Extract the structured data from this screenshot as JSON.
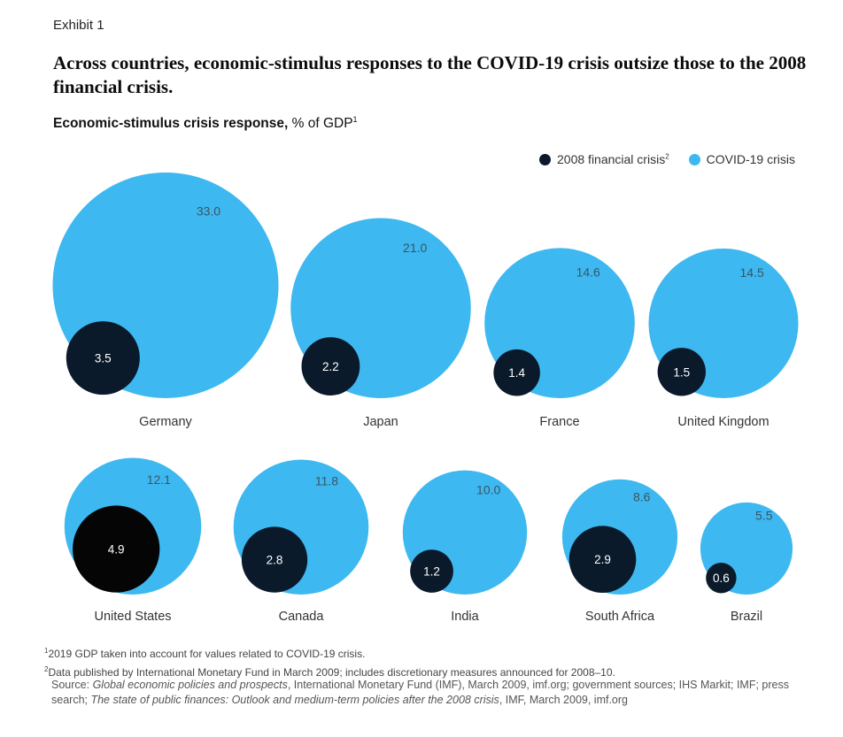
{
  "exhibit_label": "Exhibit 1",
  "title": "Across countries, economic-stimulus responses to the COVID-19 crisis outsize those to the 2008 financial crisis.",
  "subtitle_bold": "Economic-stimulus crisis response,",
  "subtitle_rest": " % of GDP",
  "subtitle_sup": "1",
  "legend": {
    "items": [
      {
        "label": "2008 financial crisis",
        "sup": "2",
        "color": "#0b1a2a"
      },
      {
        "label": "COVID-19 crisis",
        "sup": "",
        "color": "#3db8f0"
      }
    ]
  },
  "colors": {
    "covid": "#3db8f0",
    "financial": "#0b1a2a",
    "us_financial": "#050505",
    "label_on_blue": "#3a5566",
    "label_on_dark": "#ffffff"
  },
  "chart_data": {
    "type": "bubble",
    "unit": "% of GDP",
    "series": [
      {
        "name": "2008 financial crisis",
        "key": "financial"
      },
      {
        "name": "COVID-19 crisis",
        "key": "covid"
      }
    ],
    "countries": [
      {
        "name": "Germany",
        "covid": 33.0,
        "covid_label": "33.0",
        "financial": 3.5,
        "financial_label": "3.5"
      },
      {
        "name": "Japan",
        "covid": 21.0,
        "covid_label": "21.0",
        "financial": 2.2,
        "financial_label": "2.2"
      },
      {
        "name": "France",
        "covid": 14.6,
        "covid_label": "14.6",
        "financial": 1.4,
        "financial_label": "1.4"
      },
      {
        "name": "United Kingdom",
        "covid": 14.5,
        "covid_label": "14.5",
        "financial": 1.5,
        "financial_label": "1.5"
      },
      {
        "name": "United States",
        "covid": 12.1,
        "covid_label": "12.1",
        "financial": 4.9,
        "financial_label": "4.9"
      },
      {
        "name": "Canada",
        "covid": 11.8,
        "covid_label": "11.8",
        "financial": 2.8,
        "financial_label": "2.8"
      },
      {
        "name": "India",
        "covid": 10.0,
        "covid_label": "10.0",
        "financial": 1.2,
        "financial_label": "1.2"
      },
      {
        "name": "South Africa",
        "covid": 8.6,
        "covid_label": "8.6",
        "financial": 2.9,
        "financial_label": "2.9"
      },
      {
        "name": "Brazil",
        "covid": 5.5,
        "covid_label": "5.5",
        "financial": 0.6,
        "financial_label": "0.6"
      }
    ]
  },
  "footnotes": [
    {
      "mark": "1",
      "text": "2019 GDP taken into account for values related to COVID-19 crisis."
    },
    {
      "mark": "2",
      "text": "Data published by International Monetary Fund in March 2009; includes discretionary measures announced for 2008–10."
    }
  ],
  "source": {
    "prefix": "Source: ",
    "part1_italic": "Global economic policies and prospects",
    "part2": ", International Monetary Fund (IMF), March 2009, imf.org; government sources; IHS Markit; IMF; press search; ",
    "part3_italic": "The state of public finances: Outlook and medium-term policies after the 2008 crisis",
    "part4": ", IMF, March 2009, imf.org"
  }
}
